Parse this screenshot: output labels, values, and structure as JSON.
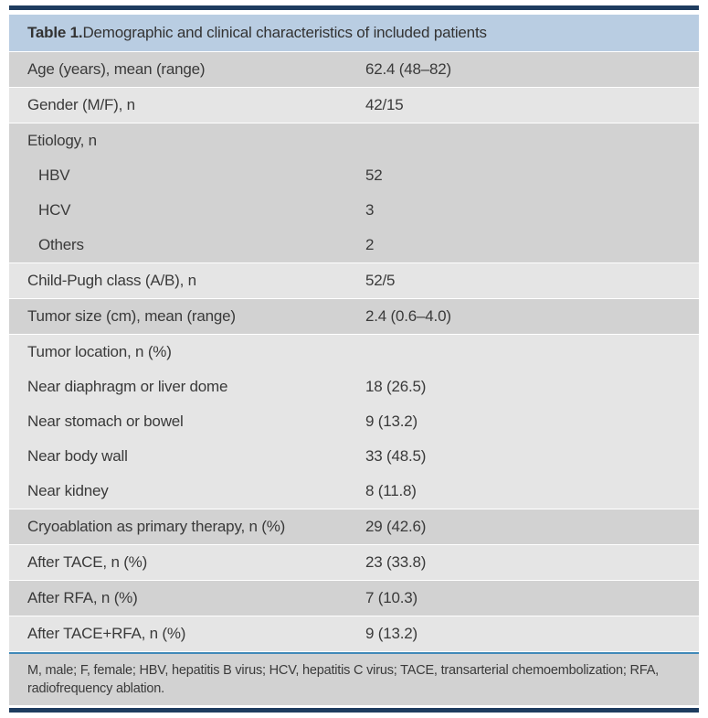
{
  "table": {
    "title_bold": "Table 1.",
    "title_rest": " Demographic and clinical characteristics of included patients",
    "bands": [
      {
        "shade": "dark",
        "rows": [
          {
            "label": "Age (years), mean (range)",
            "value": "62.4 (48–82)",
            "indent": false
          }
        ]
      },
      {
        "shade": "light",
        "rows": [
          {
            "label": "Gender (M/F), n",
            "value": "42/15",
            "indent": false
          }
        ]
      },
      {
        "shade": "dark",
        "rows": [
          {
            "label": "Etiology, n",
            "value": "",
            "indent": false
          },
          {
            "label": "HBV",
            "value": "52",
            "indent": true
          },
          {
            "label": "HCV",
            "value": "3",
            "indent": true
          },
          {
            "label": "Others",
            "value": "2",
            "indent": true
          }
        ]
      },
      {
        "shade": "light",
        "rows": [
          {
            "label": "Child-Pugh class (A/B), n",
            "value": "52/5",
            "indent": false
          }
        ]
      },
      {
        "shade": "dark",
        "rows": [
          {
            "label": "Tumor size (cm), mean (range)",
            "value": "2.4 (0.6–4.0)",
            "indent": false
          }
        ]
      },
      {
        "shade": "light",
        "rows": [
          {
            "label": "Tumor location, n (%)",
            "value": "",
            "indent": false
          },
          {
            "label": "Near diaphragm or liver dome",
            "value": "18 (26.5)",
            "indent": false
          },
          {
            "label": "Near stomach or bowel",
            "value": "9 (13.2)",
            "indent": false
          },
          {
            "label": "Near body wall",
            "value": "33 (48.5)",
            "indent": false
          },
          {
            "label": "Near kidney",
            "value": "8 (11.8)",
            "indent": false
          }
        ]
      },
      {
        "shade": "dark",
        "rows": [
          {
            "label": "Cryoablation as primary therapy, n (%)",
            "value": "29 (42.6)",
            "indent": false
          }
        ]
      },
      {
        "shade": "light",
        "rows": [
          {
            "label": "After TACE, n (%)",
            "value": "23 (33.8)",
            "indent": false
          }
        ]
      },
      {
        "shade": "dark",
        "rows": [
          {
            "label": "After RFA, n (%)",
            "value": "7 (10.3)",
            "indent": false
          }
        ]
      },
      {
        "shade": "light",
        "rows": [
          {
            "label": "After TACE+RFA, n (%)",
            "value": "9 (13.2)",
            "indent": false
          }
        ]
      }
    ],
    "footnote": "M, male; F, female; HBV, hepatitis B virus; HCV, hepatitis C virus; TACE, transarterial chemoembolization; RFA, radiofrequency ablation."
  },
  "colors": {
    "header_bg": "#b9cde2",
    "row_dark": "#d2d2d2",
    "row_light": "#e5e5e5",
    "rule_navy": "#1e3c5f",
    "rule_blue": "#4089b8",
    "text": "#3a3a3a"
  }
}
